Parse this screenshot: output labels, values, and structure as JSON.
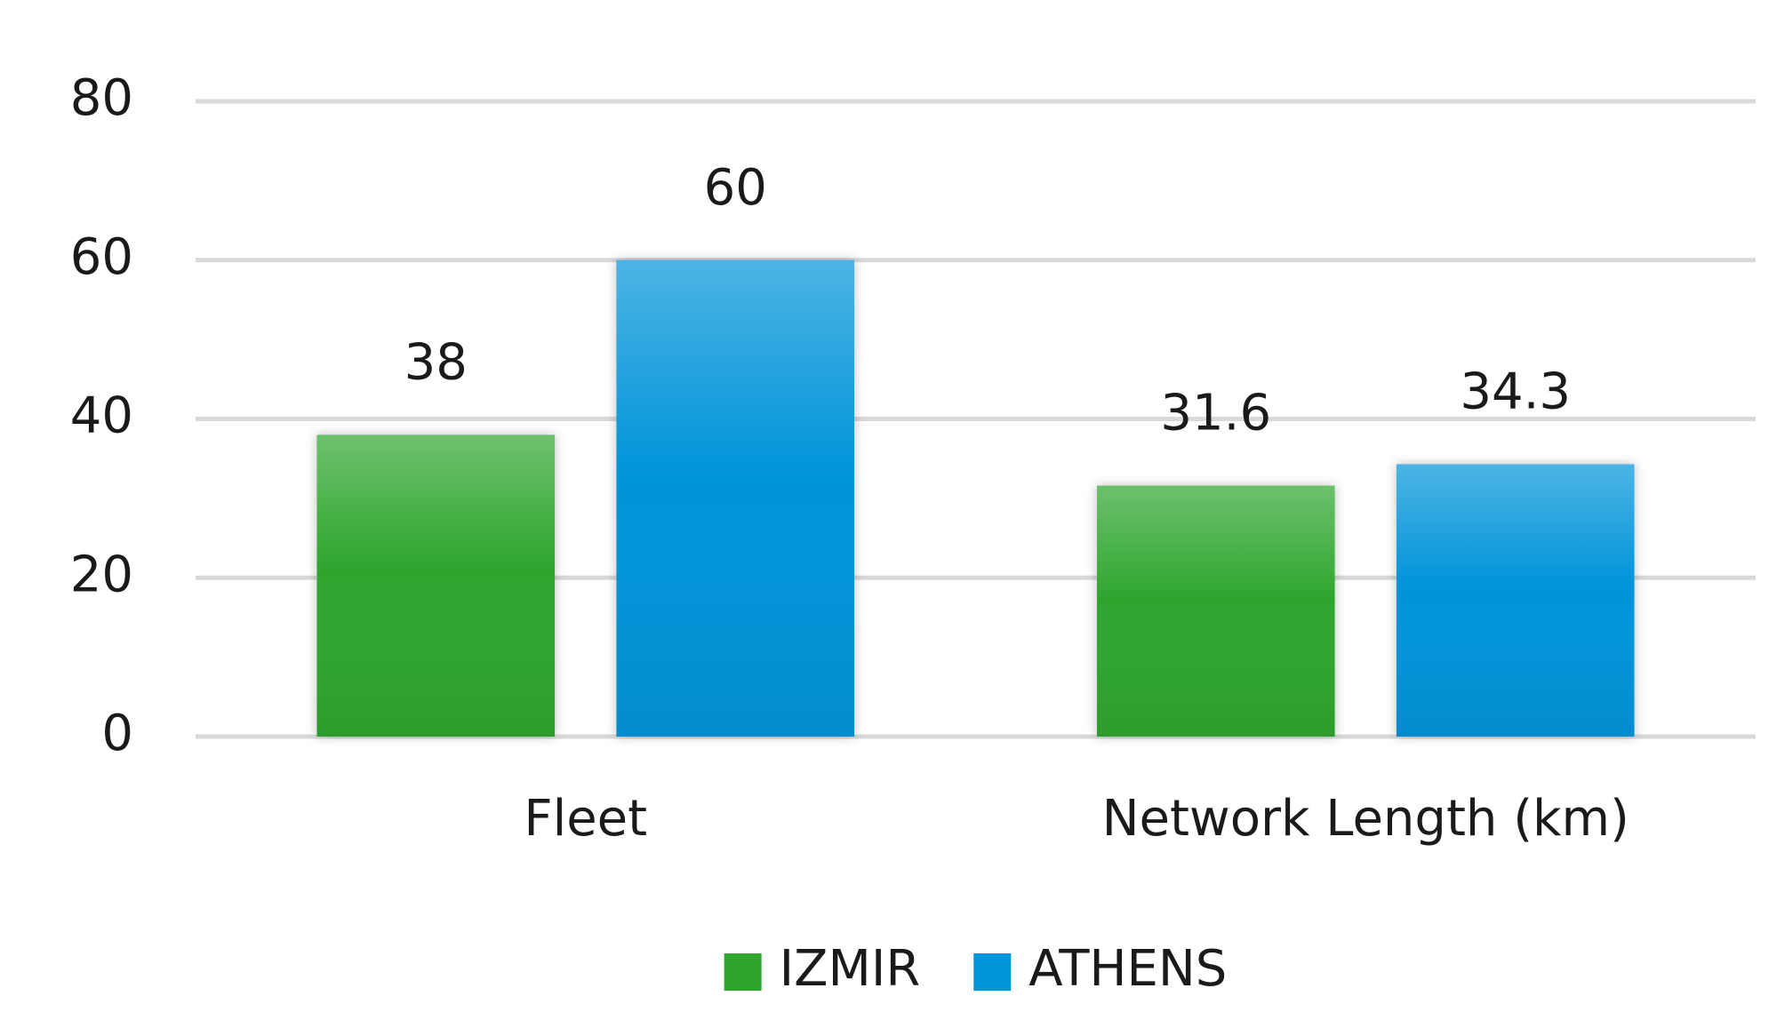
{
  "chart_data": {
    "type": "bar",
    "categories": [
      "Fleet",
      "Network Length (km)"
    ],
    "series": [
      {
        "name": "IZMIR",
        "color": "#2ea62e",
        "values": [
          38,
          31.6
        ]
      },
      {
        "name": "ATHENS",
        "color": "#0094d9",
        "values": [
          60,
          34.3
        ]
      }
    ],
    "ylim": [
      0,
      80
    ],
    "yticks": [
      0,
      20,
      40,
      60,
      80
    ],
    "grid": true,
    "legend": "bottom"
  }
}
